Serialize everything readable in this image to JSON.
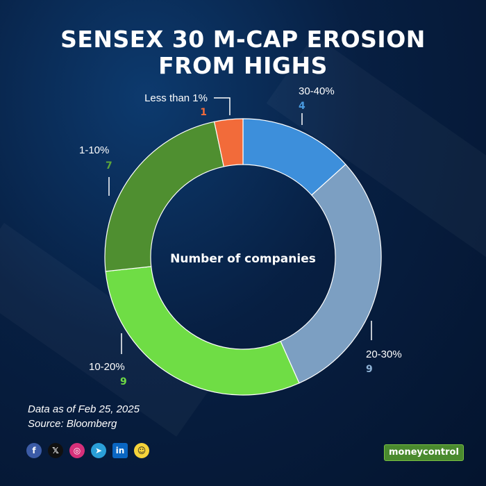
{
  "title": [
    "SENSEX 30 M-CAP EROSION",
    "FROM HIGHS"
  ],
  "center_label": "Number of companies",
  "footnote": {
    "date": "Data as of Feb 25, 2025",
    "source": "Source: Bloomberg"
  },
  "brand": "moneycontrol",
  "social_icons": [
    "facebook-icon",
    "x-icon",
    "instagram-icon",
    "telegram-icon",
    "linkedin-icon",
    "snapchat-icon"
  ],
  "chart_data": {
    "type": "pie",
    "style": "donut",
    "title": "SENSEX 30 M-CAP EROSION FROM HIGHS",
    "center_text": "Number of companies",
    "slices": [
      {
        "label": "30-40%",
        "value": 4,
        "color": "#3d8fdb",
        "label_color": "#4a9be0"
      },
      {
        "label": "20-30%",
        "value": 9,
        "color": "#7c9fc2",
        "label_color": "#8fb3d6"
      },
      {
        "label": "10-20%",
        "value": 9,
        "color": "#6fdd45",
        "label_color": "#6fdd45"
      },
      {
        "label": "1-10%",
        "value": 7,
        "color": "#4f8f30",
        "label_color": "#5ea63a"
      },
      {
        "label": "Less than 1%",
        "value": 1,
        "color": "#f26b3a",
        "label_color": "#f26b3a"
      }
    ]
  }
}
